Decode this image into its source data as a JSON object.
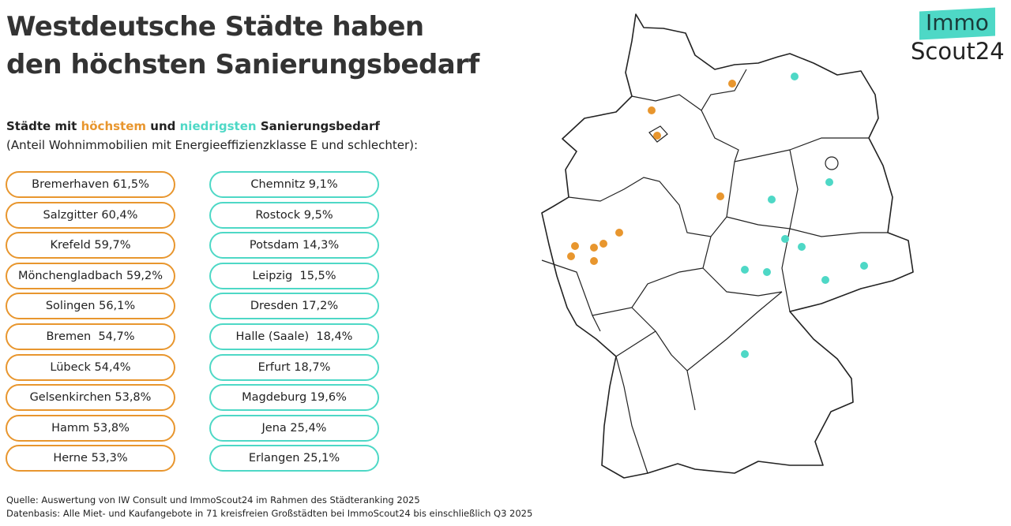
{
  "title": [
    "Westdeutsche Städte haben",
    "den höchsten Sanierungsbedarf"
  ],
  "subtitle": {
    "prefix": "Städte mit",
    "highest": "höchstem",
    "and": "und",
    "lowest": "niedrigsten",
    "suffix": "Sanierungsbedarf",
    "line2": "(Anteil Wohnimmobilien mit Energieeffizienzklasse E und schlechter):"
  },
  "colors": {
    "highest": "#e8962e",
    "lowest": "#4ed8c6"
  },
  "highest": [
    "Bremerhaven 61,5%",
    "Salzgitter 60,4%",
    "Krefeld 59,7%",
    "Mönchengladbach 59,2%",
    "Solingen 56,1%",
    "Bremen  54,7%",
    "Lübeck 54,4%",
    "Gelsenkirchen 53,8%",
    "Hamm 53,8%",
    "Herne 53,3%"
  ],
  "lowest": [
    "Chemnitz 9,1%",
    "Rostock 9,5%",
    "Potsdam 14,3%",
    "Leipzig  15,5%",
    "Dresden 17,2%",
    "Halle (Saale)  18,4%",
    "Erfurt 18,7%",
    "Magdeburg 19,6%",
    "Jena 25,4%",
    "Erlangen 25,1%"
  ],
  "footer": [
    "Quelle: Auswertung von IW Consult und ImmoScout24 im Rahmen des Städteranking 2025",
    "Datenbasis: Alle Miet- und Kaufangebote in 71 kreisfreien Großstädten bei ImmoScout24 bis einschließlich Q3 2025"
  ],
  "logo": {
    "line1": "Immo",
    "line2": "Scout24"
  }
}
